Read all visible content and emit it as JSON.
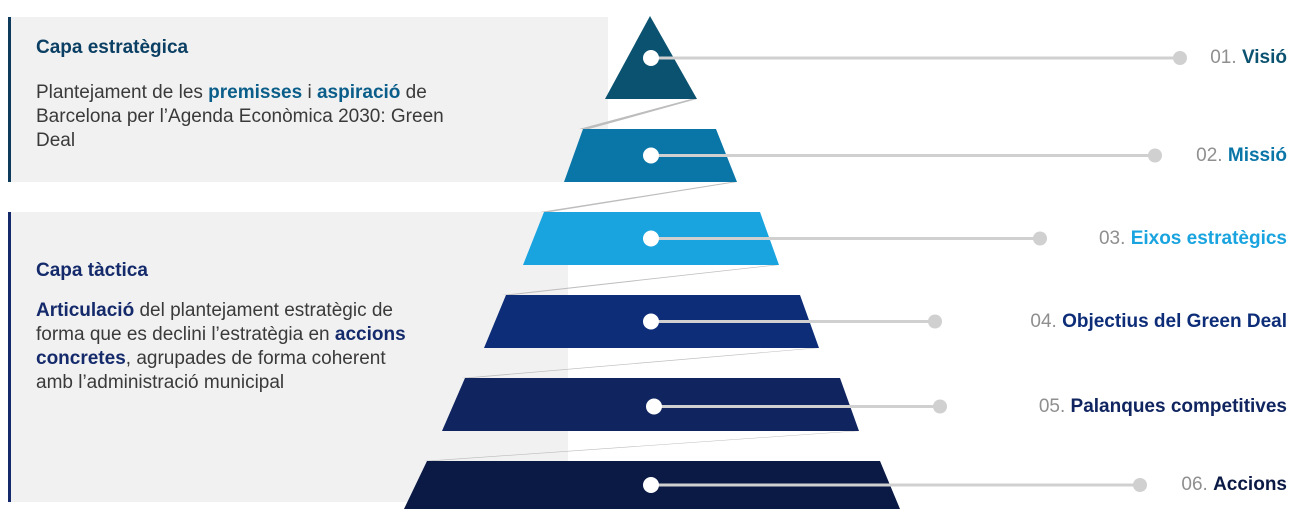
{
  "layers": [
    {
      "title": "Capa estratègica",
      "description": [
        {
          "text": "Plantejament de les ",
          "bold": false
        },
        {
          "text": "premisses",
          "bold": true
        },
        {
          "text": " i ",
          "bold": false
        },
        {
          "text": "aspiració",
          "bold": true
        },
        {
          "text": " de Barcelona per l’Agenda Econòmica 2030: Green Deal",
          "bold": false
        }
      ]
    },
    {
      "title": "Capa tàctica",
      "description": [
        {
          "text": "Articulació",
          "bold": true
        },
        {
          "text": " del plantejament estratègic de forma que es declini l’estratègia en ",
          "bold": false
        },
        {
          "text": "accions concretes",
          "bold": true
        },
        {
          "text": ", agrupades de forma coherent amb l’administració municipal",
          "bold": false
        }
      ]
    }
  ],
  "levels": [
    {
      "number": "01.",
      "name": "Visió",
      "color": "#0b5270"
    },
    {
      "number": "02.",
      "name": "Missió",
      "color": "#0a76a8"
    },
    {
      "number": "03.",
      "name": "Eixos estratègics",
      "color": "#19a4df"
    },
    {
      "number": "04.",
      "name": "Objectius del Green Deal",
      "color": "#0d2d78"
    },
    {
      "number": "05.",
      "name": "Palanques competitives",
      "color": "#102560"
    },
    {
      "number": "06.",
      "name": "Accions",
      "color": "#0a1a45"
    }
  ],
  "colors": {
    "connector": "#bdbdbd",
    "dot": "#ffffff",
    "line": "#d0d0d0",
    "label_number": "#8f8f8f"
  }
}
